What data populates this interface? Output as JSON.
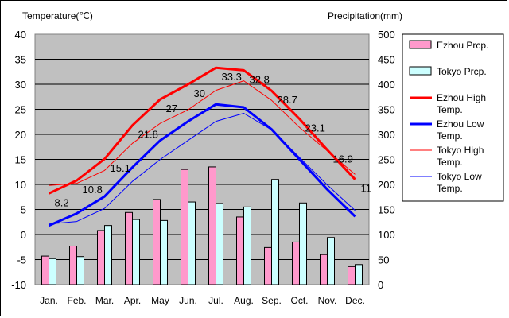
{
  "chart_data": {
    "type": "bar",
    "title": "",
    "y_left_label": "Temperature(℃)",
    "y_right_label": "Precipitation(mm)",
    "categories": [
      "Jan.",
      "Feb.",
      "Mar.",
      "Apr.",
      "May",
      "Jun.",
      "Jul.",
      "Aug.",
      "Sep.",
      "Oct.",
      "Nov.",
      "Dec."
    ],
    "y_left_range": [
      -10,
      40
    ],
    "y_left_ticks": [
      "-10",
      "-5",
      "0",
      "5",
      "10",
      "15",
      "20",
      "25",
      "30",
      "35",
      "40"
    ],
    "y_right_range": [
      0,
      500
    ],
    "y_right_ticks": [
      "0",
      "50",
      "100",
      "150",
      "200",
      "250",
      "300",
      "350",
      "400",
      "450",
      "500"
    ],
    "grid": "horizontal",
    "legend_position": "right",
    "series": [
      {
        "name": "Ezhou Prcp.",
        "kind": "bar",
        "axis": "right",
        "color": "#ff99cc",
        "values": [
          57,
          77,
          108,
          144,
          170,
          230,
          235,
          135,
          74,
          85,
          60,
          36
        ]
      },
      {
        "name": "Tokyo Prcp.",
        "kind": "bar",
        "axis": "right",
        "color": "#ccffff",
        "values": [
          52,
          56,
          118,
          130,
          128,
          165,
          162,
          155,
          210,
          163,
          94,
          40
        ]
      },
      {
        "name": "Ezhou High Temp.",
        "kind": "line",
        "axis": "left",
        "color": "#ff0000",
        "width": "thick",
        "values": [
          8.2,
          10.8,
          15.1,
          21.8,
          27,
          30,
          33.3,
          32.8,
          28.7,
          23.1,
          16.9,
          11
        ]
      },
      {
        "name": "Ezhou Low Temp.",
        "kind": "line",
        "axis": "left",
        "color": "#0000ff",
        "width": "thick",
        "values": [
          1.8,
          4.2,
          7.6,
          13.4,
          18.8,
          22.6,
          26,
          25.4,
          21,
          15,
          9,
          3.6
        ]
      },
      {
        "name": "Tokyo High Temp.",
        "kind": "line",
        "axis": "left",
        "color": "#ff0000",
        "width": "thin",
        "values": [
          9.8,
          10.2,
          12.8,
          18.2,
          22.2,
          24.9,
          28.8,
          30.7,
          26.8,
          21.4,
          16.7,
          12
        ]
      },
      {
        "name": "Tokyo Low Temp.",
        "kind": "line",
        "axis": "left",
        "color": "#0000ff",
        "width": "thin",
        "values": [
          2.1,
          2.6,
          5.2,
          10.6,
          15.0,
          18.8,
          22.6,
          24.2,
          20.9,
          15.4,
          9.9,
          4.8
        ]
      }
    ],
    "data_labels": {
      "series": "Ezhou High Temp.",
      "labels": [
        "8.2",
        "10.8",
        "15.1",
        "21.8",
        "27",
        "30",
        "33.3",
        "32.8",
        "28.7",
        "23.1",
        "16.9",
        "11"
      ]
    }
  }
}
